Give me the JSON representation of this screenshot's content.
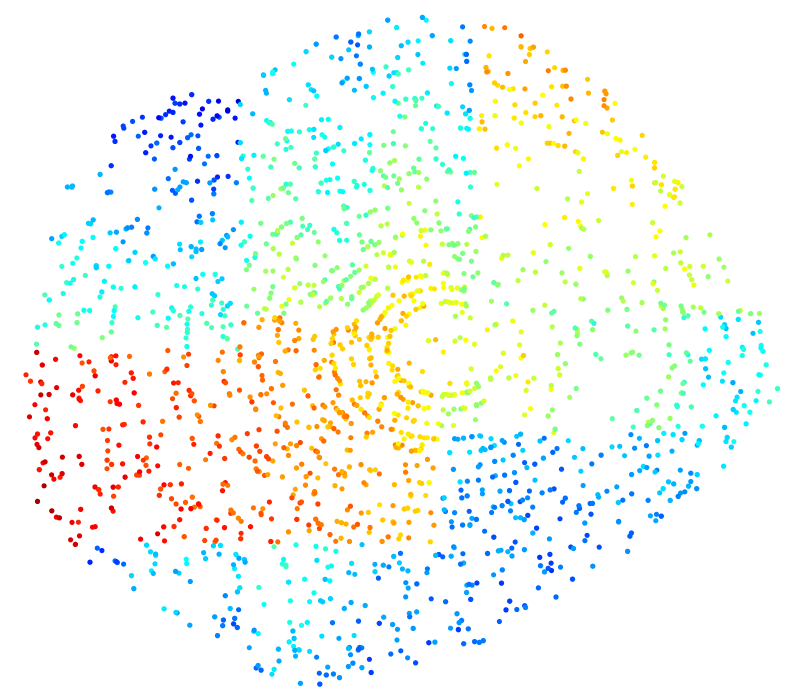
{
  "chart_data": {
    "type": "scatter",
    "title": "",
    "xlabel": "",
    "ylabel": "",
    "axes_visible": false,
    "grid": false,
    "legend": "none",
    "colormap": "jet",
    "colors": {
      "background": "#ffffff",
      "jet_stops": [
        "#00008f",
        "#0000ff",
        "#007fff",
        "#00ffff",
        "#7fff7f",
        "#ffff00",
        "#ff7f00",
        "#ff0000",
        "#7f0000"
      ]
    },
    "xlim": [
      0,
      1
    ],
    "ylim": [
      0,
      1
    ],
    "clim": [
      0,
      1
    ],
    "point_count_approx": 3000
  }
}
